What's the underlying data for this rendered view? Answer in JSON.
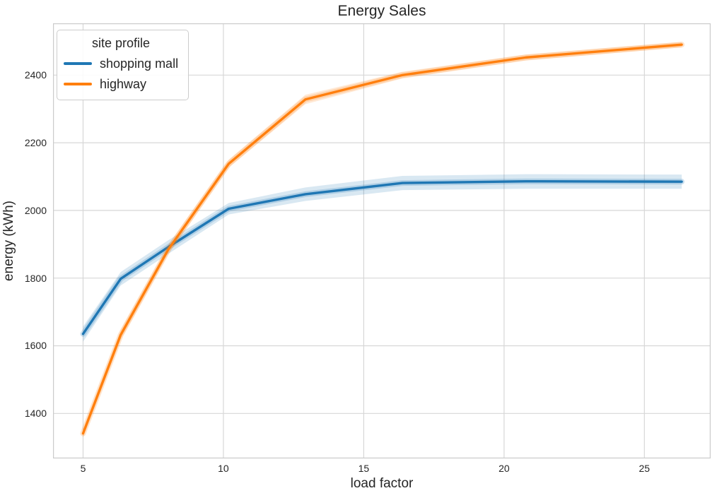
{
  "chart_data": {
    "type": "line",
    "title": "Energy Sales",
    "xlabel": "load factor",
    "ylabel": "energy (kWh)",
    "xlim": [
      3.93,
      27.36
    ],
    "ylim": [
      1267,
      2553
    ],
    "xticks": [
      5,
      10,
      15,
      20,
      25
    ],
    "yticks": [
      1400,
      1600,
      1800,
      2000,
      2200,
      2400
    ],
    "grid": true,
    "legend": {
      "title": "site profile",
      "position": "upper-left"
    },
    "x": [
      5,
      6.34,
      8.04,
      10.19,
      12.92,
      16.38,
      20.77,
      26.33
    ],
    "series": [
      {
        "name": "shopping mall",
        "color": "#1f77b4",
        "values": [
          1635,
          1798,
          1892,
          2005,
          2048,
          2081,
          2086,
          2085
        ],
        "band_lower": [
          1612,
          1778,
          1872,
          1988,
          2028,
          2060,
          2064,
          2064
        ],
        "band_upper": [
          1657,
          1818,
          1912,
          2022,
          2068,
          2102,
          2107,
          2106
        ]
      },
      {
        "name": "highway",
        "color": "#ff7f0e",
        "values": [
          1341,
          1632,
          1885,
          2138,
          2328,
          2400,
          2452,
          2490
        ],
        "band_lower": [
          1328,
          1618,
          1872,
          2126,
          2314,
          2390,
          2443,
          2482
        ],
        "band_upper": [
          1354,
          1646,
          1898,
          2150,
          2342,
          2410,
          2461,
          2498
        ]
      }
    ]
  },
  "style": {
    "background": "#ffffff",
    "grid_color": "#d7d7d7",
    "spine_color": "#cbcbcb",
    "text_color": "#262626"
  }
}
